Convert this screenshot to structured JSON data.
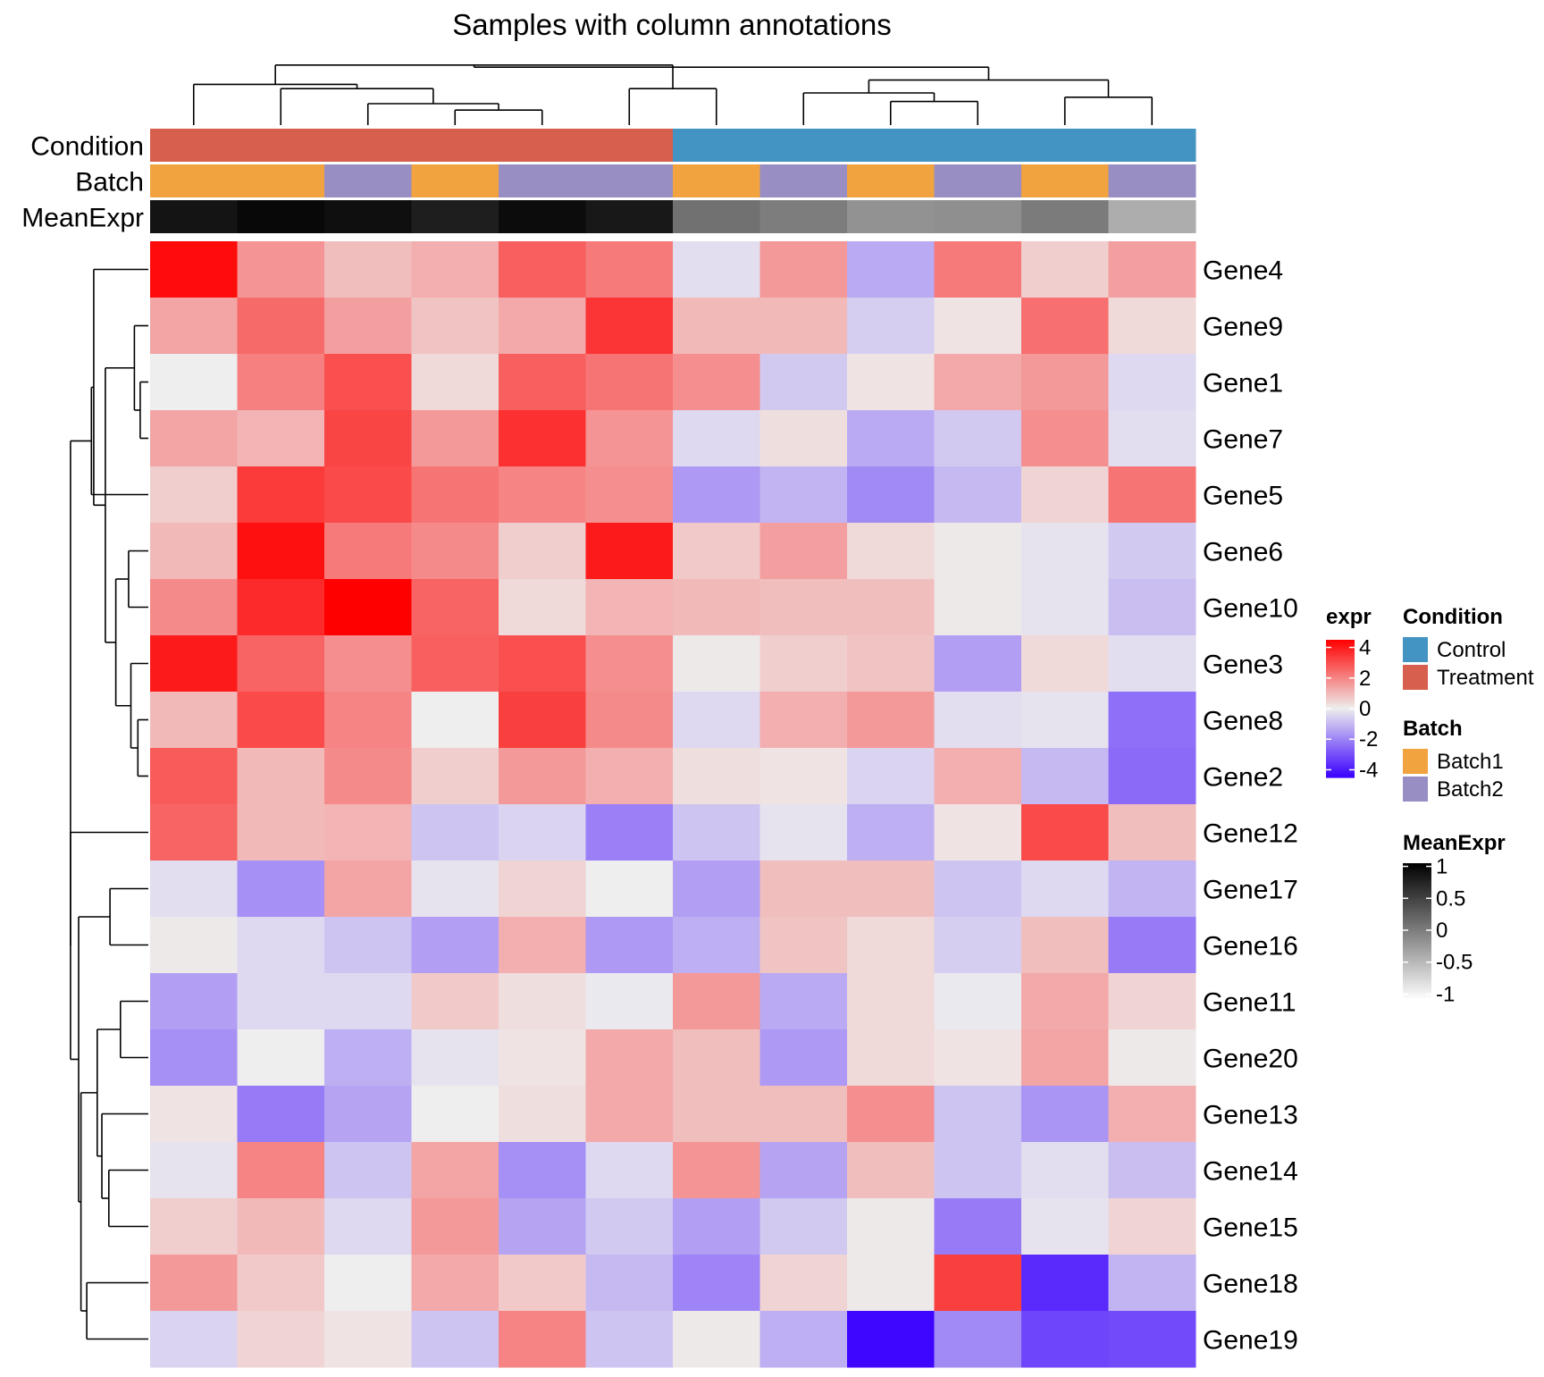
{
  "chart_data": {
    "type": "heatmap",
    "title": "Samples with column annotations",
    "rows": [
      "Gene4",
      "Gene9",
      "Gene1",
      "Gene7",
      "Gene5",
      "Gene6",
      "Gene10",
      "Gene3",
      "Gene8",
      "Gene2",
      "Gene12",
      "Gene17",
      "Gene16",
      "Gene11",
      "Gene20",
      "Gene13",
      "Gene14",
      "Gene15",
      "Gene18",
      "Gene19"
    ],
    "n_columns": 12,
    "values": [
      [
        4.3,
        1.7,
        0.9,
        1.2,
        2.7,
        2.2,
        -0.3,
        1.6,
        -1.3,
        2.2,
        0.6,
        1.5
      ],
      [
        1.4,
        2.5,
        1.5,
        0.8,
        1.3,
        3.5,
        1.0,
        1.0,
        -0.6,
        0.2,
        2.4,
        0.4
      ],
      [
        0.0,
        2.1,
        3.0,
        0.4,
        2.7,
        2.3,
        1.8,
        -0.7,
        0.2,
        1.3,
        1.6,
        -0.4
      ],
      [
        1.4,
        1.1,
        3.2,
        1.6,
        3.6,
        1.7,
        -0.4,
        0.3,
        -1.3,
        -0.7,
        1.8,
        -0.3
      ],
      [
        0.6,
        3.4,
        3.1,
        2.3,
        2.0,
        1.8,
        -1.6,
        -1.1,
        -1.9,
        -1.0,
        0.5,
        2.3
      ],
      [
        1.0,
        4.2,
        2.2,
        1.9,
        0.6,
        4.0,
        0.7,
        1.5,
        0.4,
        0.1,
        -0.2,
        -0.7
      ],
      [
        1.9,
        3.7,
        4.5,
        2.6,
        0.4,
        1.1,
        1.0,
        0.9,
        0.9,
        0.1,
        -0.2,
        -0.9
      ],
      [
        4.0,
        2.6,
        1.8,
        2.7,
        3.0,
        1.8,
        0.1,
        0.6,
        0.8,
        -1.5,
        0.4,
        -0.3
      ],
      [
        1.0,
        3.1,
        2.0,
        0.0,
        3.3,
        1.9,
        -0.4,
        1.2,
        1.6,
        -0.3,
        -0.2,
        -2.4
      ],
      [
        2.8,
        1.0,
        1.9,
        0.6,
        1.6,
        1.2,
        0.3,
        0.2,
        -0.5,
        1.2,
        -1.0,
        -2.5
      ],
      [
        2.6,
        1.0,
        1.1,
        -0.8,
        -0.5,
        -2.1,
        -0.8,
        -0.2,
        -1.2,
        0.2,
        3.1,
        0.9
      ],
      [
        -0.3,
        -1.8,
        1.4,
        -0.2,
        0.5,
        0.0,
        -1.5,
        0.9,
        0.9,
        -0.8,
        -0.4,
        -1.1
      ],
      [
        0.1,
        -0.4,
        -0.8,
        -1.5,
        1.2,
        -1.6,
        -1.2,
        0.8,
        0.4,
        -0.6,
        0.9,
        -2.2
      ],
      [
        -1.5,
        -0.4,
        -0.4,
        0.7,
        0.3,
        -0.1,
        1.6,
        -1.3,
        0.4,
        -0.1,
        1.3,
        0.5
      ],
      [
        -1.8,
        0.0,
        -1.2,
        -0.2,
        0.2,
        1.3,
        0.9,
        -1.6,
        0.4,
        0.2,
        1.4,
        0.1
      ],
      [
        0.2,
        -2.2,
        -1.4,
        0.0,
        0.3,
        1.3,
        0.9,
        0.9,
        1.8,
        -0.8,
        -1.7,
        1.2
      ],
      [
        -0.2,
        2.0,
        -0.8,
        1.4,
        -1.8,
        -0.4,
        1.7,
        -1.4,
        0.9,
        -0.8,
        -0.3,
        -0.9
      ],
      [
        0.6,
        1.0,
        -0.4,
        1.6,
        -1.4,
        -0.7,
        -1.5,
        -0.7,
        0.1,
        -2.2,
        -0.2,
        0.5
      ],
      [
        1.6,
        0.7,
        0.0,
        1.3,
        0.7,
        -1.0,
        -2.0,
        0.5,
        0.1,
        3.3,
        -3.7,
        -1.1
      ],
      [
        -0.5,
        0.5,
        0.2,
        -0.8,
        2.0,
        -0.8,
        0.1,
        -1.2,
        -4.4,
        -1.9,
        -3.2,
        -3.1
      ]
    ],
    "column_annotations": {
      "labels": [
        "Condition",
        "Batch",
        "MeanExpr"
      ],
      "Condition": [
        "Treatment",
        "Treatment",
        "Treatment",
        "Treatment",
        "Treatment",
        "Treatment",
        "Control",
        "Control",
        "Control",
        "Control",
        "Control",
        "Control"
      ],
      "Batch": [
        "Batch1",
        "Batch1",
        "Batch2",
        "Batch1",
        "Batch2",
        "Batch2",
        "Batch1",
        "Batch2",
        "Batch1",
        "Batch2",
        "Batch1",
        "Batch2"
      ],
      "MeanExpr": [
        0.88,
        0.98,
        0.92,
        0.8,
        0.95,
        0.85,
        0.1,
        0.0,
        -0.18,
        -0.15,
        0.02,
        -0.4
      ]
    },
    "legends": {
      "expr": {
        "title": "expr",
        "breaks": [
          "4",
          "2",
          "0",
          "-2",
          "-4"
        ],
        "break_values": [
          4,
          2,
          0,
          -2,
          -4
        ],
        "range": [
          -4.5,
          4.5
        ]
      },
      "Condition": {
        "title": "Condition",
        "entries": [
          {
            "label": "Control",
            "color": "#4393C3"
          },
          {
            "label": "Treatment",
            "color": "#D6604D"
          }
        ]
      },
      "Batch": {
        "title": "Batch",
        "entries": [
          {
            "label": "Batch1",
            "color": "#F1A340"
          },
          {
            "label": "Batch2",
            "color": "#998EC3"
          }
        ]
      },
      "MeanExpr": {
        "title": "MeanExpr",
        "breaks": [
          "1",
          "0.5",
          "0",
          "-0.5",
          "-1"
        ],
        "break_values": [
          1,
          0.5,
          0,
          -0.5,
          -1
        ],
        "range": [
          -1.05,
          1.05
        ]
      }
    },
    "colors": {
      "low": "#0000FF",
      "mid": "#EEEEEE",
      "high": "#FF0000",
      "treatment": "#D6604D",
      "control": "#4393C3",
      "batch1": "#F1A340",
      "batch2": "#998EC3"
    },
    "col_dendrogram": {
      "merges": [
        [
          0,
          1,
          1.0
        ],
        [
          1,
          3,
          1.1
        ],
        [
          0,
          2,
          1.1
        ],
        [
          -2,
          4,
          1.5
        ],
        [
          -4,
          -3,
          2.1
        ],
        [
          4,
          5,
          1.0
        ],
        [
          1,
          3,
          1.1
        ],
        [
          6,
          -5,
          1.3
        ],
        [
          -6,
          -7,
          2.0
        ],
        [
          -8,
          -1,
          2.6
        ],
        [
          -9,
          -10,
          3.0
        ]
      ],
      "col_merges": [
        [
          3,
          4,
          0.35
        ],
        [
          2,
          -1,
          0.5
        ],
        [
          1,
          -2,
          0.85
        ],
        [
          5,
          6,
          0.85
        ],
        [
          0,
          -3,
          0.95
        ],
        [
          -4,
          -5,
          1.4
        ],
        [
          8,
          9,
          0.55
        ],
        [
          7,
          -7,
          0.75
        ],
        [
          10,
          11,
          0.65
        ],
        [
          -8,
          -9,
          1.05
        ],
        [
          -6,
          -10,
          1.35
        ]
      ]
    }
  }
}
